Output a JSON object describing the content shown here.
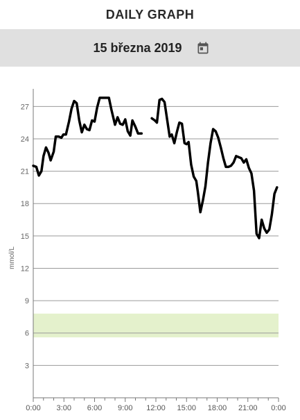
{
  "header": {
    "title": "DAILY GRAPH"
  },
  "datebar": {
    "date": "15 března 2019",
    "calendar_icon": "calendar-icon"
  },
  "colors": {
    "line": "#000000",
    "target_band": "#e4f1cc",
    "grid": "#9a9a9a",
    "header_bar": "#e0e0e0"
  },
  "chart_data": {
    "type": "line",
    "ylabel": "mmol/L",
    "xlabel": "",
    "ylim": [
      0,
      28.5
    ],
    "xlim": [
      0,
      24
    ],
    "yticks": [
      "3",
      "6",
      "9",
      "12",
      "15",
      "18",
      "21",
      "24",
      "27"
    ],
    "xticks": [
      "0:00",
      "3:00",
      "6:00",
      "9:00",
      "12:00",
      "15:00",
      "18:00",
      "21:00",
      "0:00"
    ],
    "target_range": [
      5.6,
      7.8
    ],
    "series": [
      {
        "segments": [
          [
            [
              0,
              21.5
            ],
            [
              0.3,
              21.4
            ],
            [
              0.55,
              20.6
            ],
            [
              0.8,
              21.0
            ],
            [
              1.0,
              22.4
            ],
            [
              1.25,
              23.2
            ],
            [
              1.5,
              22.7
            ],
            [
              1.7,
              22.0
            ],
            [
              2.0,
              22.8
            ],
            [
              2.2,
              24.2
            ],
            [
              2.5,
              24.2
            ],
            [
              2.75,
              24.1
            ],
            [
              2.95,
              24.4
            ],
            [
              3.2,
              24.4
            ],
            [
              3.5,
              25.6
            ],
            [
              3.75,
              26.8
            ],
            [
              4.0,
              27.5
            ],
            [
              4.25,
              27.3
            ],
            [
              4.5,
              25.7
            ],
            [
              4.75,
              24.6
            ],
            [
              5.0,
              25.3
            ],
            [
              5.25,
              24.9
            ],
            [
              5.5,
              24.8
            ],
            [
              5.75,
              25.7
            ],
            [
              6.0,
              25.6
            ],
            [
              6.25,
              26.9
            ],
            [
              6.5,
              27.8
            ],
            [
              7.0,
              27.8
            ],
            [
              7.4,
              27.8
            ],
            [
              7.65,
              26.7
            ],
            [
              8.0,
              25.3
            ],
            [
              8.25,
              26.0
            ],
            [
              8.5,
              25.4
            ],
            [
              8.75,
              25.3
            ],
            [
              9.0,
              25.8
            ],
            [
              9.25,
              24.7
            ],
            [
              9.5,
              24.3
            ],
            [
              9.7,
              25.7
            ],
            [
              10.0,
              25.1
            ],
            [
              10.25,
              24.5
            ],
            [
              10.6,
              24.5
            ]
          ],
          [
            [
              11.6,
              25.9
            ],
            [
              11.9,
              25.7
            ],
            [
              12.1,
              25.5
            ],
            [
              12.35,
              27.6
            ],
            [
              12.6,
              27.7
            ],
            [
              12.85,
              27.4
            ],
            [
              13.1,
              25.8
            ],
            [
              13.35,
              24.2
            ],
            [
              13.55,
              24.4
            ],
            [
              13.8,
              23.6
            ],
            [
              14.05,
              24.6
            ],
            [
              14.3,
              25.5
            ],
            [
              14.55,
              25.4
            ],
            [
              14.8,
              23.6
            ],
            [
              15.0,
              23.5
            ],
            [
              15.2,
              23.7
            ],
            [
              15.45,
              21.6
            ],
            [
              15.7,
              20.5
            ],
            [
              15.95,
              20.1
            ],
            [
              16.1,
              19.1
            ],
            [
              16.35,
              17.2
            ],
            [
              16.6,
              18.3
            ],
            [
              16.85,
              19.6
            ],
            [
              17.1,
              21.8
            ],
            [
              17.35,
              23.6
            ],
            [
              17.6,
              24.9
            ],
            [
              17.85,
              24.7
            ],
            [
              18.1,
              24.1
            ],
            [
              18.35,
              23.2
            ],
            [
              18.6,
              22.2
            ],
            [
              18.85,
              21.4
            ],
            [
              19.1,
              21.4
            ],
            [
              19.35,
              21.5
            ],
            [
              19.6,
              21.8
            ],
            [
              19.85,
              22.4
            ],
            [
              20.1,
              22.3
            ],
            [
              20.35,
              22.2
            ],
            [
              20.6,
              21.8
            ],
            [
              20.85,
              22.1
            ],
            [
              21.1,
              21.3
            ],
            [
              21.35,
              20.8
            ],
            [
              21.6,
              19.2
            ],
            [
              21.85,
              15.2
            ],
            [
              22.1,
              14.8
            ],
            [
              22.35,
              16.5
            ],
            [
              22.6,
              15.7
            ],
            [
              22.85,
              15.3
            ],
            [
              23.1,
              15.6
            ],
            [
              23.35,
              17.0
            ],
            [
              23.6,
              18.9
            ],
            [
              23.85,
              19.5
            ]
          ]
        ]
      }
    ]
  }
}
